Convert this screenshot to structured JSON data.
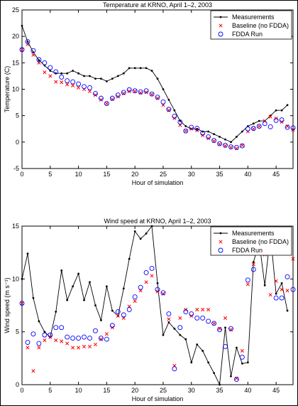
{
  "chart_data": [
    {
      "type": "line",
      "title": "Temperature at KRNO, April 1–2, 2003",
      "xlabel": "Hour of simulation",
      "ylabel": "Temperature (C)",
      "xlim": [
        0,
        48
      ],
      "ylim": [
        -5,
        25
      ],
      "xticks": [
        0,
        5,
        10,
        15,
        20,
        25,
        30,
        35,
        40,
        45
      ],
      "yticks": [
        -5,
        0,
        5,
        10,
        15,
        20,
        25
      ],
      "legend_position": "top-right",
      "grid": false,
      "series": [
        {
          "name": "Measurements",
          "marker": "dot",
          "color": "#000000",
          "x": [
            0,
            1,
            2,
            3,
            4,
            5,
            6,
            7,
            8,
            9,
            10,
            11,
            12,
            13,
            14,
            15,
            16,
            17,
            18,
            19,
            20,
            21,
            22,
            23,
            24,
            25,
            26,
            27,
            28,
            29,
            30,
            31,
            32,
            33,
            34,
            35,
            36,
            37,
            38,
            39,
            40,
            41,
            42,
            43,
            44,
            45,
            46,
            47
          ],
          "y": [
            22,
            19,
            17,
            15.5,
            14.5,
            13.5,
            13,
            13,
            13,
            13.5,
            13,
            12.5,
            12.5,
            12,
            12,
            11.5,
            12,
            12.5,
            13,
            14,
            14,
            14,
            14,
            13.5,
            12,
            10,
            8,
            6,
            4,
            3,
            2.5,
            2.5,
            2,
            2,
            1.5,
            1,
            0.5,
            0,
            1,
            2,
            3,
            3.5,
            4,
            4,
            5,
            6,
            6,
            7
          ]
        },
        {
          "name": "Baseline (no FDDA)",
          "marker": "x",
          "color": "#ff0000",
          "x": [
            0,
            1,
            2,
            3,
            4,
            5,
            6,
            7,
            8,
            9,
            10,
            11,
            12,
            13,
            14,
            15,
            16,
            17,
            18,
            19,
            20,
            21,
            22,
            23,
            24,
            25,
            26,
            27,
            28,
            29,
            30,
            31,
            32,
            33,
            34,
            35,
            36,
            37,
            38,
            39,
            40,
            41,
            42,
            43,
            44,
            45,
            46,
            47,
            48
          ],
          "y": [
            17.5,
            18.5,
            16.5,
            15,
            13.2,
            12.5,
            11.4,
            11.3,
            10.9,
            10.7,
            10.3,
            10,
            9.6,
            8.9,
            8,
            7.3,
            8.1,
            8.6,
            9.2,
            9.6,
            9.6,
            9.3,
            9.4,
            9,
            8.3,
            7,
            6,
            4.5,
            3.2,
            2.1,
            2.5,
            2.2,
            1.3,
            0.7,
            0.2,
            -0.4,
            -0.7,
            -1,
            -1.2,
            -0.6,
            2,
            2.5,
            3,
            4,
            4.8,
            4.5,
            3.8,
            3,
            2.3
          ]
        },
        {
          "name": "FDDA Run",
          "marker": "circle",
          "color": "#0000ff",
          "x": [
            0,
            1,
            2,
            3,
            4,
            5,
            6,
            7,
            8,
            9,
            10,
            11,
            12,
            13,
            14,
            15,
            16,
            17,
            18,
            19,
            20,
            21,
            22,
            23,
            24,
            25,
            26,
            27,
            28,
            29,
            30,
            31,
            32,
            33,
            34,
            35,
            36,
            37,
            38,
            39,
            40,
            41,
            42,
            43,
            44,
            45,
            46,
            47,
            48
          ],
          "y": [
            17.5,
            19,
            17.3,
            15.6,
            15,
            14.1,
            13.3,
            12.3,
            11.6,
            11.4,
            11,
            10.5,
            10.3,
            9.2,
            8.3,
            7.3,
            8.3,
            8.9,
            9.4,
            9.9,
            9.7,
            9.5,
            9.7,
            9.1,
            8.5,
            7.6,
            6.2,
            4.9,
            3.8,
            2.1,
            2.8,
            2.6,
            1.7,
            1,
            0.3,
            -0.3,
            -0.6,
            -0.9,
            -1,
            -0.7,
            2.5,
            2.6,
            3,
            3.5,
            2.9,
            4.1,
            4.2,
            2.8,
            2.7
          ]
        }
      ]
    },
    {
      "type": "line",
      "title": "Wind speed at KRNO, April 1–2, 2003",
      "xlabel": "Hour of simulation",
      "ylabel": "Wind speed (m s⁻¹)",
      "xlim": [
        0,
        48
      ],
      "ylim": [
        0,
        15
      ],
      "xticks": [
        0,
        5,
        10,
        15,
        20,
        25,
        30,
        35,
        40,
        45
      ],
      "yticks": [
        0,
        5,
        10,
        15
      ],
      "legend_position": "top-right",
      "grid": false,
      "series": [
        {
          "name": "Measurements",
          "marker": "dot",
          "color": "#000000",
          "x": [
            0,
            1,
            2,
            3,
            4,
            5,
            6,
            7,
            8,
            9,
            10,
            11,
            12,
            13,
            14,
            15,
            16,
            17,
            18,
            19,
            20,
            21,
            22,
            23,
            24,
            25,
            26,
            27,
            28,
            29,
            30,
            31,
            32,
            33,
            34,
            35,
            36,
            37,
            38,
            39,
            40,
            41,
            42,
            43,
            44,
            45,
            46,
            47
          ],
          "y": [
            10,
            12.4,
            8.2,
            6,
            5,
            4.5,
            6.9,
            10.8,
            8,
            9.3,
            10.5,
            8,
            9.7,
            7.5,
            6.1,
            9.3,
            7,
            6.5,
            9.1,
            11.9,
            14.5,
            13.8,
            14.3,
            15,
            9.6,
            4.7,
            5.9,
            5.3,
            4.7,
            4.3,
            2.1,
            3.8,
            3.2,
            2.1,
            1.1,
            0,
            5.4,
            0.8,
            3.5,
            2,
            2.1,
            11.6,
            13.5,
            9.4,
            14.2,
            8.6,
            9.6,
            7
          ]
        },
        {
          "name": "Baseline (no FDDA)",
          "marker": "x",
          "color": "#ff0000",
          "x": [
            0,
            1,
            2,
            3,
            4,
            5,
            6,
            7,
            8,
            9,
            10,
            11,
            12,
            13,
            14,
            15,
            16,
            17,
            18,
            19,
            20,
            21,
            22,
            23,
            24,
            25,
            26,
            27,
            28,
            29,
            30,
            31,
            32,
            33,
            34,
            35,
            36,
            37,
            38,
            39,
            40,
            41,
            42,
            43,
            44,
            45,
            46,
            47,
            48
          ],
          "y": [
            7.7,
            3.5,
            1.3,
            3.5,
            4.2,
            4.5,
            4.2,
            4.1,
            3.9,
            3.5,
            3.5,
            3.6,
            3.6,
            3.8,
            4.3,
            4.8,
            5.4,
            6.5,
            6.3,
            7.4,
            7.9,
            8.9,
            9.7,
            10.3,
            8.8,
            8.6,
            6.2,
            1.8,
            6.3,
            7.1,
            6.5,
            7.1,
            7.1,
            7.1,
            5.8,
            5.3,
            6.3,
            5.2,
            0.6,
            3.2,
            9.5,
            11.4,
            12.7,
            12.3,
            8.5,
            9.8,
            9,
            8.9,
            11.9
          ]
        },
        {
          "name": "FDDA Run",
          "marker": "circle",
          "color": "#0000ff",
          "x": [
            0,
            1,
            2,
            3,
            4,
            5,
            6,
            7,
            8,
            9,
            10,
            11,
            12,
            13,
            14,
            15,
            16,
            17,
            18,
            19,
            20,
            21,
            22,
            23,
            24,
            25,
            26,
            27,
            28,
            29,
            30,
            31,
            32,
            33,
            34,
            35,
            36,
            37,
            38,
            39,
            40,
            41,
            42,
            43,
            44,
            45,
            46,
            47,
            48
          ],
          "y": [
            7.7,
            4,
            4.8,
            3.9,
            4.7,
            4.7,
            5.4,
            5.4,
            4.5,
            4.4,
            4.4,
            4.5,
            4.4,
            5.1,
            4.4,
            4.3,
            5.6,
            6.9,
            6.6,
            7.1,
            8.3,
            9.2,
            10.6,
            11,
            9,
            8.7,
            6.7,
            1.5,
            5.4,
            6.9,
            6.7,
            6.3,
            6.3,
            6,
            5.8,
            5.2,
            3.6,
            5.3,
            0.5,
            2.6,
            9.9,
            10.9,
            13.9,
            12.6,
            13.5,
            8.2,
            8.2,
            10.2,
            9
          ]
        }
      ]
    }
  ]
}
